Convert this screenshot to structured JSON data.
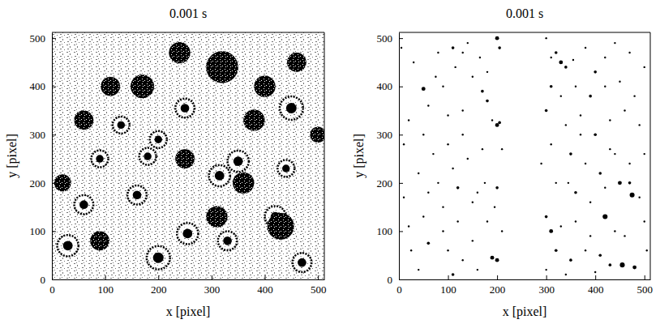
{
  "chart_data": [
    {
      "type": "scatter",
      "title": "0.001 s",
      "x_label": "x [pixel]",
      "y_label": "y [pixel]",
      "xlim": [
        0,
        512
      ],
      "ylim": [
        0,
        512
      ],
      "xticks": [
        0,
        100,
        200,
        300,
        400,
        500
      ],
      "yticks": [
        0,
        100,
        200,
        300,
        400,
        500
      ],
      "series": [
        {
          "marker": "ring",
          "color": "#000000",
          "x": [
            200,
            255,
            350,
            420,
            470,
            315,
            160,
            60,
            30,
            180,
            200,
            450,
            250,
            90,
            440,
            330,
            130
          ],
          "y": [
            45,
            95,
            245,
            130,
            35,
            215,
            175,
            155,
            70,
            255,
            290,
            355,
            355,
            250,
            230,
            80,
            320
          ],
          "sizes": [
            22,
            20,
            20,
            20,
            18,
            20,
            18,
            18,
            20,
            16,
            16,
            22,
            18,
            16,
            16,
            18,
            16
          ]
        },
        {
          "marker": "patch",
          "color": "#000000",
          "x": [
            320,
            170,
            400,
            110,
            380,
            500,
            310,
            430,
            20,
            250,
            360,
            90,
            460,
            240,
            60
          ],
          "y": [
            440,
            400,
            400,
            400,
            330,
            300,
            130,
            110,
            200,
            250,
            200,
            80,
            450,
            470,
            330
          ],
          "sizes": [
            30,
            22,
            20,
            18,
            20,
            15,
            20,
            25,
            16,
            18,
            20,
            18,
            18,
            20,
            18
          ]
        }
      ]
    },
    {
      "type": "scatter",
      "title": "0.001 s",
      "x_label": "x [pixel]",
      "y_label": "y [pixel]",
      "xlim": [
        0,
        512
      ],
      "ylim": [
        0,
        512
      ],
      "xticks": [
        0,
        100,
        200,
        300,
        400,
        500
      ],
      "yticks": [
        0,
        100,
        200,
        300,
        400,
        500
      ],
      "marker": "circle",
      "color": "#000000",
      "x": [
        50,
        110,
        130,
        200,
        205,
        180,
        150,
        90,
        60,
        20,
        100,
        130,
        170,
        180,
        190,
        200,
        205,
        140,
        100,
        70,
        40,
        80,
        120,
        160,
        200,
        195,
        150,
        90,
        50,
        20,
        120,
        180,
        210,
        60,
        100,
        130,
        190,
        200,
        160,
        110,
        40,
        10,
        30,
        80,
        140,
        60,
        110,
        170,
        10,
        130,
        75,
        210,
        25,
        150,
        90,
        5,
        175,
        50,
        115,
        165,
        300,
        320,
        330,
        340,
        310,
        355,
        380,
        400,
        420,
        440,
        470,
        500,
        310,
        330,
        360,
        390,
        420,
        450,
        480,
        300,
        340,
        370,
        400,
        430,
        460,
        490,
        310,
        350,
        380,
        410,
        440,
        470,
        500,
        320,
        360,
        390,
        420,
        450,
        470,
        490,
        300,
        310,
        330,
        360,
        390,
        420,
        440,
        475,
        320,
        350,
        380,
        410,
        430,
        455,
        480,
        505,
        300,
        340,
        400,
        370,
        430,
        290,
        500,
        345,
        460
      ],
      "y": [
        395,
        480,
        470,
        500,
        480,
        430,
        420,
        400,
        360,
        330,
        340,
        300,
        390,
        370,
        330,
        320,
        325,
        250,
        280,
        260,
        220,
        200,
        190,
        180,
        190,
        150,
        160,
        150,
        130,
        110,
        120,
        120,
        100,
        75,
        60,
        40,
        45,
        40,
        20,
        10,
        20,
        280,
        450,
        470,
        490,
        180,
        230,
        270,
        170,
        350,
        420,
        270,
        60,
        80,
        100,
        480,
        200,
        300,
        440,
        460,
        500,
        470,
        450,
        440,
        460,
        455,
        480,
        430,
        460,
        490,
        470,
        440,
        400,
        380,
        400,
        380,
        400,
        410,
        380,
        350,
        320,
        340,
        300,
        330,
        350,
        320,
        280,
        260,
        240,
        220,
        260,
        240,
        260,
        200,
        180,
        160,
        190,
        200,
        200,
        170,
        130,
        100,
        110,
        120,
        90,
        130,
        100,
        175,
        60,
        40,
        60,
        50,
        30,
        30,
        25,
        60,
        20,
        10,
        15,
        300,
        270,
        240,
        120,
        200,
        90
      ],
      "sizes": [
        4,
        3,
        2,
        4,
        3,
        2,
        2,
        2,
        2,
        2,
        2,
        2,
        3,
        3,
        2,
        4,
        3,
        2,
        2,
        2,
        2,
        2,
        3,
        2,
        3,
        2,
        2,
        2,
        2,
        2,
        2,
        2,
        2,
        3,
        2,
        2,
        4,
        4,
        2,
        3,
        2,
        2,
        2,
        2,
        2,
        2,
        2,
        2,
        2,
        2,
        2,
        2,
        2,
        2,
        2,
        2,
        2,
        2,
        2,
        2,
        2,
        3,
        4,
        3,
        2,
        2,
        2,
        3,
        2,
        2,
        2,
        2,
        3,
        2,
        2,
        3,
        2,
        2,
        2,
        3,
        2,
        2,
        3,
        2,
        2,
        2,
        2,
        3,
        2,
        3,
        2,
        2,
        2,
        2,
        3,
        2,
        2,
        4,
        3,
        2,
        3,
        4,
        2,
        2,
        2,
        5,
        2,
        5,
        3,
        3,
        2,
        3,
        3,
        5,
        4,
        2,
        2,
        2,
        2,
        2,
        2,
        2,
        2,
        2,
        2
      ]
    }
  ]
}
